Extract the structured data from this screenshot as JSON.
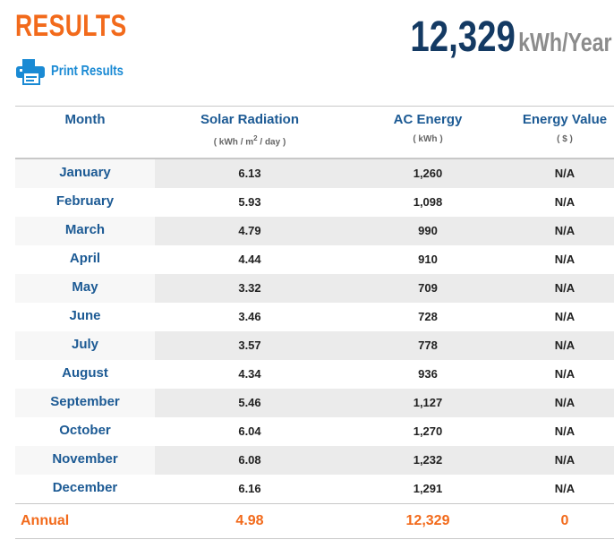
{
  "header": {
    "title": "RESULTS",
    "print_label": "Print Results",
    "total_value": "12,329",
    "total_unit": "kWh/Year"
  },
  "table": {
    "columns": [
      {
        "label": "Month",
        "unit": ""
      },
      {
        "label": "Solar Radiation",
        "unit_prefix": "( kWh / m",
        "unit_sup": "2",
        "unit_suffix": " / day )"
      },
      {
        "label": "AC Energy",
        "unit": "( kWh )"
      },
      {
        "label": "Energy Value",
        "unit": "( $ )"
      }
    ],
    "rows": [
      {
        "month": "January",
        "solar": "6.13",
        "ac": "1,260",
        "value": "N/A"
      },
      {
        "month": "February",
        "solar": "5.93",
        "ac": "1,098",
        "value": "N/A"
      },
      {
        "month": "March",
        "solar": "4.79",
        "ac": "990",
        "value": "N/A"
      },
      {
        "month": "April",
        "solar": "4.44",
        "ac": "910",
        "value": "N/A"
      },
      {
        "month": "May",
        "solar": "3.32",
        "ac": "709",
        "value": "N/A"
      },
      {
        "month": "June",
        "solar": "3.46",
        "ac": "728",
        "value": "N/A"
      },
      {
        "month": "July",
        "solar": "3.57",
        "ac": "778",
        "value": "N/A"
      },
      {
        "month": "August",
        "solar": "4.34",
        "ac": "936",
        "value": "N/A"
      },
      {
        "month": "September",
        "solar": "5.46",
        "ac": "1,127",
        "value": "N/A"
      },
      {
        "month": "October",
        "solar": "6.04",
        "ac": "1,270",
        "value": "N/A"
      },
      {
        "month": "November",
        "solar": "6.08",
        "ac": "1,232",
        "value": "N/A"
      },
      {
        "month": "December",
        "solar": "6.16",
        "ac": "1,291",
        "value": "N/A"
      }
    ],
    "annual": {
      "label": "Annual",
      "solar": "4.98",
      "ac": "12,329",
      "value": "0"
    }
  },
  "colors": {
    "accent_orange": "#f26a1b",
    "header_blue": "#1c5a94",
    "total_navy": "#143a63",
    "link_blue": "#1a8ad4"
  },
  "icons": {
    "print": "printer-icon"
  }
}
